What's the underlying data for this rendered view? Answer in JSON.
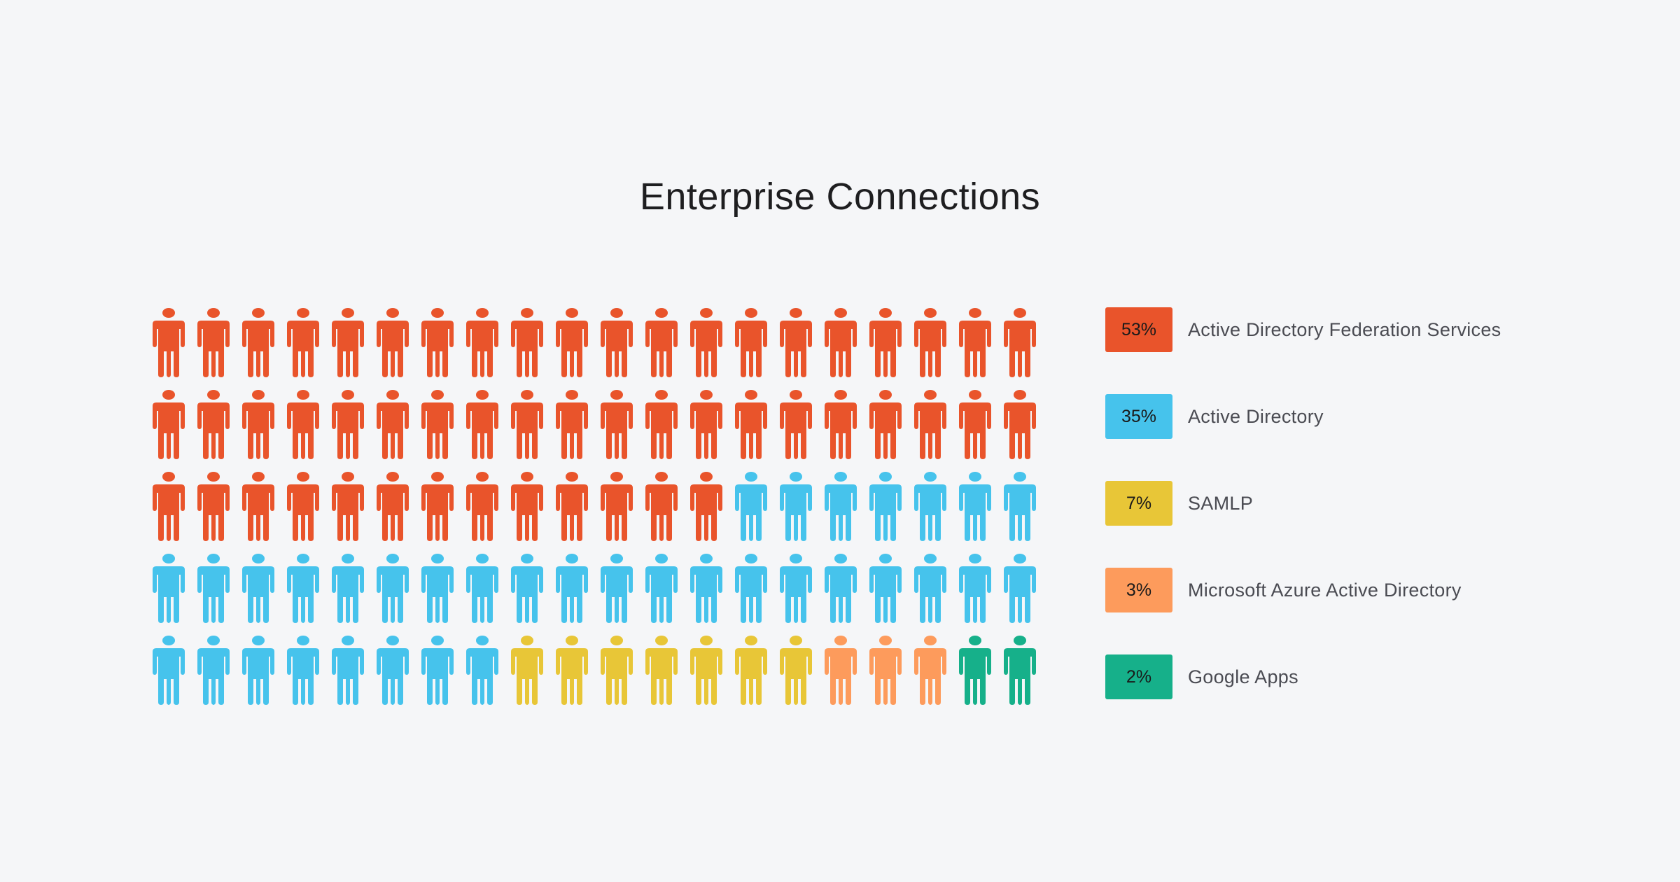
{
  "chart_data": {
    "type": "pictogram",
    "title": "Enterprise Connections",
    "icon": "person-icon",
    "total_icons": 100,
    "columns": 20,
    "rows": 5,
    "series": [
      {
        "name": "Active Directory Federation Services",
        "value": 53,
        "label": "53%",
        "color": "#e9542b"
      },
      {
        "name": "Active Directory",
        "value": 35,
        "label": "35%",
        "color": "#46c3ec"
      },
      {
        "name": "SAMLP",
        "value": 7,
        "label": "7%",
        "color": "#e8c637"
      },
      {
        "name": "Microsoft Azure Active Directory",
        "value": 3,
        "label": "3%",
        "color": "#fd9b5c"
      },
      {
        "name": "Google Apps",
        "value": 2,
        "label": "2%",
        "color": "#16b08a"
      }
    ],
    "legend_position": "right"
  }
}
